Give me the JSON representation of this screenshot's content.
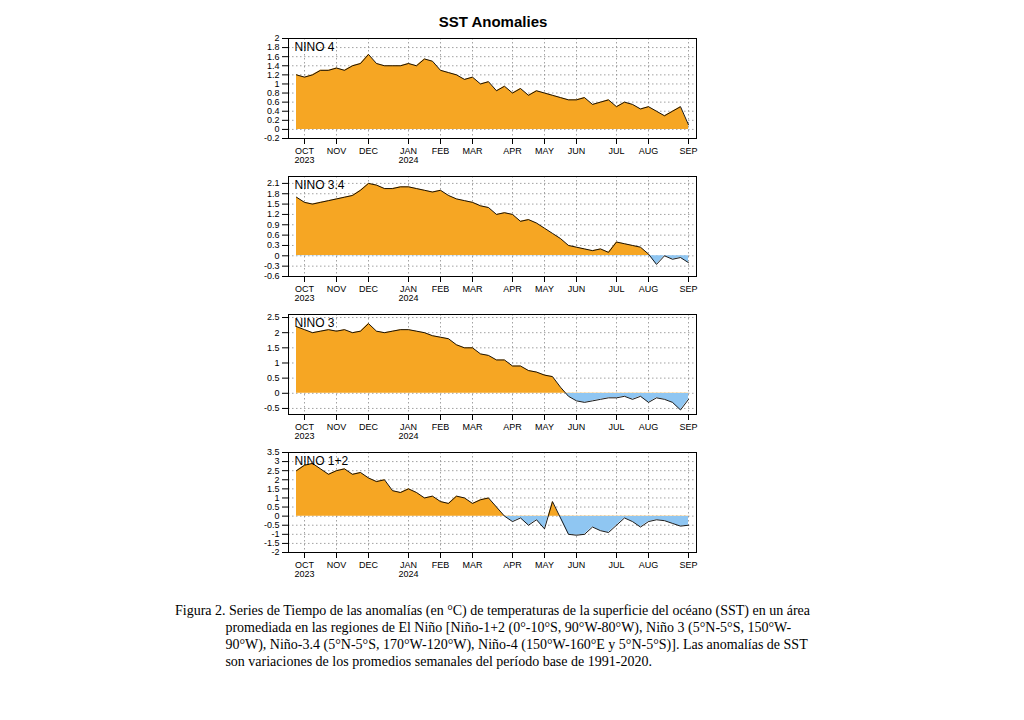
{
  "title": "SST Anomalies",
  "caption": "Figura 2. Series de Tiempo de las anomalías (en °C) de temperaturas de la superficie del océano (SST) en un área promediada en las regiones de El Niño [Niño-1+2 (0°-10°S, 90°W-80°W), Niño 3 (5°N-5°S, 150°W-90°W), Niño-3.4 (5°N-5°S, 170°W-120°W), Niño-4 (150°W-160°E y 5°N-5°S)]. Las anomalías de SST son variaciones de los promedios semanales del período base de 1991-2020.",
  "chart_data": [
    {
      "type": "area",
      "title": "NINO 4",
      "categories": [
        null,
        "OCT\n2023",
        null,
        null,
        null,
        "NOV",
        null,
        null,
        null,
        "DEC",
        null,
        null,
        null,
        null,
        "JAN\n2024",
        null,
        null,
        null,
        "FEB",
        null,
        null,
        null,
        "MAR",
        null,
        null,
        null,
        null,
        "APR",
        null,
        null,
        null,
        "MAY",
        null,
        null,
        null,
        "JUN",
        null,
        null,
        null,
        null,
        "JUL",
        null,
        null,
        null,
        "AUG",
        null,
        null,
        null,
        null,
        "SEP"
      ],
      "values": [
        1.2,
        1.15,
        1.2,
        1.3,
        1.3,
        1.35,
        1.3,
        1.4,
        1.45,
        1.65,
        1.45,
        1.4,
        1.4,
        1.4,
        1.45,
        1.4,
        1.55,
        1.5,
        1.3,
        1.25,
        1.2,
        1.1,
        1.15,
        1.0,
        1.05,
        0.85,
        0.95,
        0.8,
        0.9,
        0.75,
        0.85,
        0.8,
        0.75,
        0.7,
        0.65,
        0.65,
        0.7,
        0.55,
        0.6,
        0.65,
        0.5,
        0.6,
        0.55,
        0.45,
        0.5,
        0.4,
        0.3,
        0.4,
        0.5,
        0.1
      ],
      "colors": [
        "#f6a623",
        "#8fc6f2"
      ],
      "ylim": [
        -0.2,
        2
      ],
      "yticks": [
        -0.2,
        0,
        0.2,
        0.4,
        0.6,
        0.8,
        1,
        1.2,
        1.4,
        1.6,
        1.8,
        2
      ],
      "grid": true
    },
    {
      "type": "area",
      "title": "NINO 3.4",
      "categories": [
        null,
        "OCT\n2023",
        null,
        null,
        null,
        "NOV",
        null,
        null,
        null,
        "DEC",
        null,
        null,
        null,
        null,
        "JAN\n2024",
        null,
        null,
        null,
        "FEB",
        null,
        null,
        null,
        "MAR",
        null,
        null,
        null,
        null,
        "APR",
        null,
        null,
        null,
        "MAY",
        null,
        null,
        null,
        "JUN",
        null,
        null,
        null,
        null,
        "JUL",
        null,
        null,
        null,
        "AUG",
        null,
        null,
        null,
        null,
        "SEP"
      ],
      "values": [
        1.7,
        1.55,
        1.5,
        1.55,
        1.6,
        1.65,
        1.7,
        1.75,
        1.9,
        2.1,
        2.05,
        1.95,
        1.95,
        2.0,
        2.0,
        1.95,
        1.9,
        1.85,
        1.9,
        1.75,
        1.65,
        1.6,
        1.55,
        1.45,
        1.4,
        1.2,
        1.25,
        1.2,
        1.0,
        1.05,
        0.95,
        0.8,
        0.65,
        0.5,
        0.3,
        0.25,
        0.2,
        0.15,
        0.2,
        0.1,
        0.4,
        0.35,
        0.3,
        0.25,
        0.05,
        -0.25,
        0.0,
        -0.1,
        -0.05,
        -0.2
      ],
      "colors": [
        "#f6a623",
        "#8fc6f2"
      ],
      "ylim": [
        -0.6,
        2.3
      ],
      "yticks": [
        -0.6,
        -0.3,
        0,
        0.3,
        0.6,
        0.9,
        1.2,
        1.5,
        1.8,
        2.1
      ],
      "grid": true
    },
    {
      "type": "area",
      "title": "NINO 3",
      "categories": [
        null,
        "OCT\n2023",
        null,
        null,
        null,
        "NOV",
        null,
        null,
        null,
        "DEC",
        null,
        null,
        null,
        null,
        "JAN\n2024",
        null,
        null,
        null,
        "FEB",
        null,
        null,
        null,
        "MAR",
        null,
        null,
        null,
        null,
        "APR",
        null,
        null,
        null,
        "MAY",
        null,
        null,
        null,
        "JUN",
        null,
        null,
        null,
        null,
        "JUL",
        null,
        null,
        null,
        "AUG",
        null,
        null,
        null,
        null,
        "SEP"
      ],
      "values": [
        2.2,
        2.1,
        2.0,
        2.05,
        2.1,
        2.05,
        2.1,
        2.0,
        2.05,
        2.3,
        2.05,
        2.0,
        2.05,
        2.1,
        2.1,
        2.05,
        2.0,
        1.9,
        1.85,
        1.8,
        1.6,
        1.5,
        1.5,
        1.3,
        1.25,
        1.1,
        1.1,
        0.9,
        0.9,
        0.75,
        0.7,
        0.6,
        0.55,
        0.2,
        -0.1,
        -0.25,
        -0.3,
        -0.25,
        -0.2,
        -0.15,
        -0.15,
        -0.1,
        -0.2,
        -0.1,
        -0.3,
        -0.15,
        -0.2,
        -0.3,
        -0.55,
        -0.2
      ],
      "colors": [
        "#f6a623",
        "#8fc6f2"
      ],
      "ylim": [
        -0.7,
        2.6
      ],
      "yticks": [
        -0.5,
        0,
        0.5,
        1,
        1.5,
        2,
        2.5
      ],
      "grid": true
    },
    {
      "type": "area",
      "title": "NINO 1+2",
      "categories": [
        null,
        "OCT\n2023",
        null,
        null,
        null,
        "NOV",
        null,
        null,
        null,
        "DEC",
        null,
        null,
        null,
        null,
        "JAN\n2024",
        null,
        null,
        null,
        "FEB",
        null,
        null,
        null,
        "MAR",
        null,
        null,
        null,
        null,
        "APR",
        null,
        null,
        null,
        "MAY",
        null,
        null,
        null,
        "JUN",
        null,
        null,
        null,
        null,
        "JUL",
        null,
        null,
        null,
        "AUG",
        null,
        null,
        null,
        null,
        "SEP"
      ],
      "values": [
        2.5,
        2.8,
        2.9,
        2.6,
        2.3,
        2.5,
        2.6,
        2.3,
        2.4,
        2.1,
        1.9,
        2.0,
        1.4,
        1.3,
        1.5,
        1.3,
        1.0,
        1.1,
        0.8,
        0.7,
        1.1,
        1.0,
        0.7,
        0.9,
        1.0,
        0.5,
        0.0,
        -0.3,
        -0.1,
        -0.5,
        -0.2,
        -0.7,
        0.8,
        -0.1,
        -1.0,
        -1.05,
        -1.0,
        -0.6,
        -0.8,
        -0.9,
        -0.5,
        -0.1,
        -0.3,
        -0.6,
        -0.3,
        -0.2,
        -0.25,
        -0.4,
        -0.55,
        -0.5
      ],
      "colors": [
        "#f6a623",
        "#8fc6f2"
      ],
      "ylim": [
        -2,
        3.5
      ],
      "yticks": [
        -2,
        -1.5,
        -1,
        -0.5,
        0,
        0.5,
        1,
        1.5,
        2,
        2.5,
        3,
        3.5
      ],
      "grid": true
    }
  ]
}
